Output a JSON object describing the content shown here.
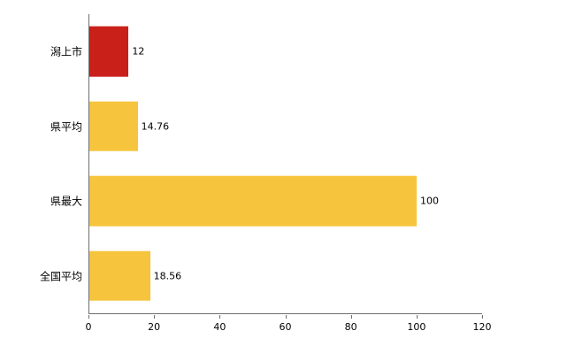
{
  "chart_data": {
    "type": "bar",
    "orientation": "horizontal",
    "title": "",
    "categories": [
      "潟上市",
      "県平均",
      "県最大",
      "全国平均"
    ],
    "values": [
      12,
      14.76,
      100,
      18.56
    ],
    "value_labels": [
      "12",
      "14.76",
      "100",
      "18.56"
    ],
    "bar_colors": [
      "#c9201a",
      "#f6c53d",
      "#f6c53d",
      "#f6c53d"
    ],
    "xlim": [
      0,
      120
    ],
    "x_ticks": [
      0,
      20,
      40,
      60,
      80,
      100,
      120
    ],
    "xlabel": "",
    "ylabel": "",
    "grid": false,
    "legend": "none"
  },
  "colors": {
    "axis": "#6e6e6e",
    "background": "#ffffff",
    "text": "#000000",
    "highlight_bar": "#c9201a",
    "default_bar": "#f6c53d"
  }
}
